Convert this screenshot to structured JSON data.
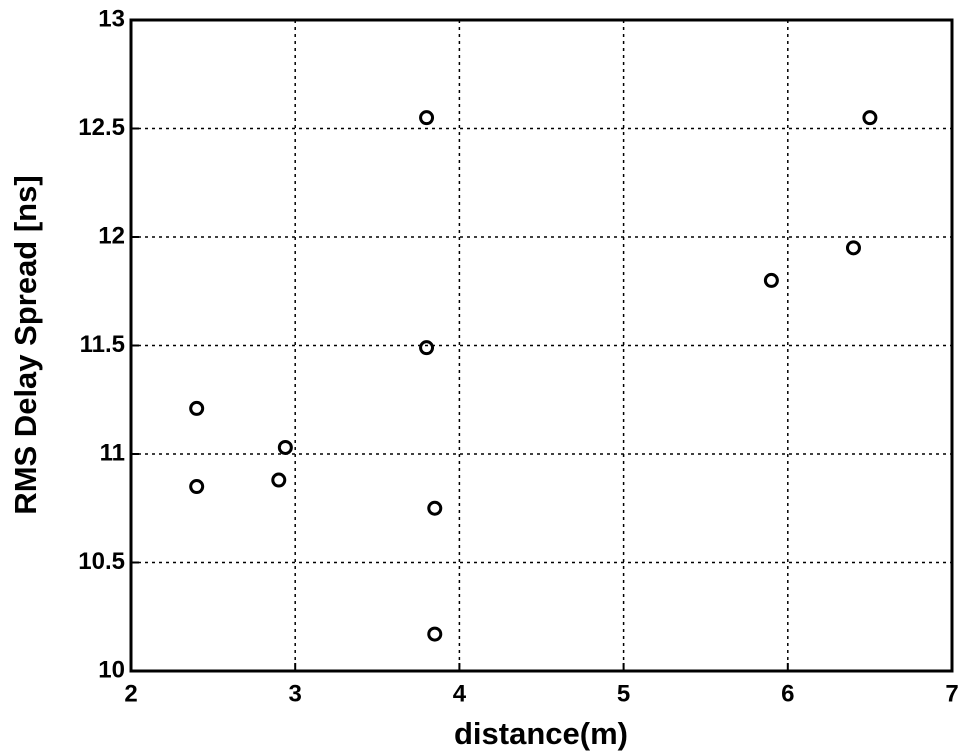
{
  "chart_data": {
    "type": "scatter",
    "x_label": "distance(m)",
    "y_label": "RMS Delay Spread [ns]",
    "series": [
      {
        "color": "#000000",
        "x": [
          2.4,
          2.4,
          2.9,
          2.94,
          3.8,
          3.8,
          3.85,
          3.85,
          5.9,
          6.4,
          6.5
        ],
        "values": [
          11.21,
          10.85,
          10.88,
          11.03,
          12.55,
          11.49,
          10.75,
          10.17,
          11.8,
          11.95,
          12.55
        ]
      }
    ],
    "xlim": [
      2,
      7
    ],
    "xticks": [
      2,
      3,
      4,
      5,
      6,
      7
    ],
    "ylim": [
      10,
      13
    ],
    "yticks": [
      10,
      10.5,
      11,
      11.5,
      12,
      12.5,
      13
    ],
    "grid": true
  }
}
